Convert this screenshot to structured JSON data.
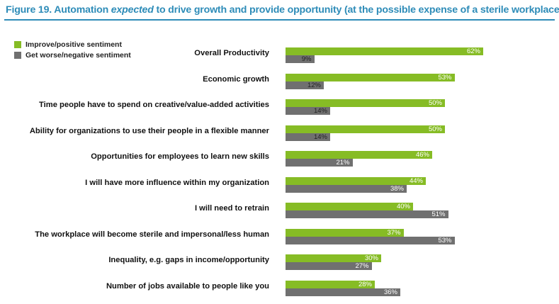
{
  "figure": {
    "title_prefix": "Figure 19. Automation ",
    "title_emph": "expected",
    "title_suffix": " to drive growth and provide opportunity (at the possible expense of a sterile workplace)"
  },
  "colors": {
    "positive": "#86bc25",
    "negative": "#707070",
    "title": "#2e8cb8"
  },
  "chart_data": {
    "type": "bar",
    "orientation": "horizontal",
    "value_suffix": "%",
    "categories": [
      "Overall Productivity",
      "Economic growth",
      "Time people have to spend on creative/value-added activities",
      "Ability for organizations to use their people in a flexible manner",
      "Opportunities for employees to learn new skills",
      "I will have more influence within my organization",
      "I will need to retrain",
      "The workplace will become sterile and impersonal/less human",
      "Inequality, e.g. gaps in income/opportunity",
      "Number of jobs available to people like you"
    ],
    "series": [
      {
        "name": "Improve/positive sentiment",
        "color": "#86bc25",
        "values": [
          62,
          53,
          50,
          50,
          46,
          44,
          40,
          37,
          30,
          28
        ]
      },
      {
        "name": "Get worse/negative sentiment",
        "color": "#707070",
        "values": [
          9,
          12,
          14,
          14,
          21,
          38,
          51,
          53,
          27,
          36
        ]
      }
    ],
    "xlim": [
      0,
      100
    ],
    "grid": false,
    "legend_position": "top-left"
  }
}
